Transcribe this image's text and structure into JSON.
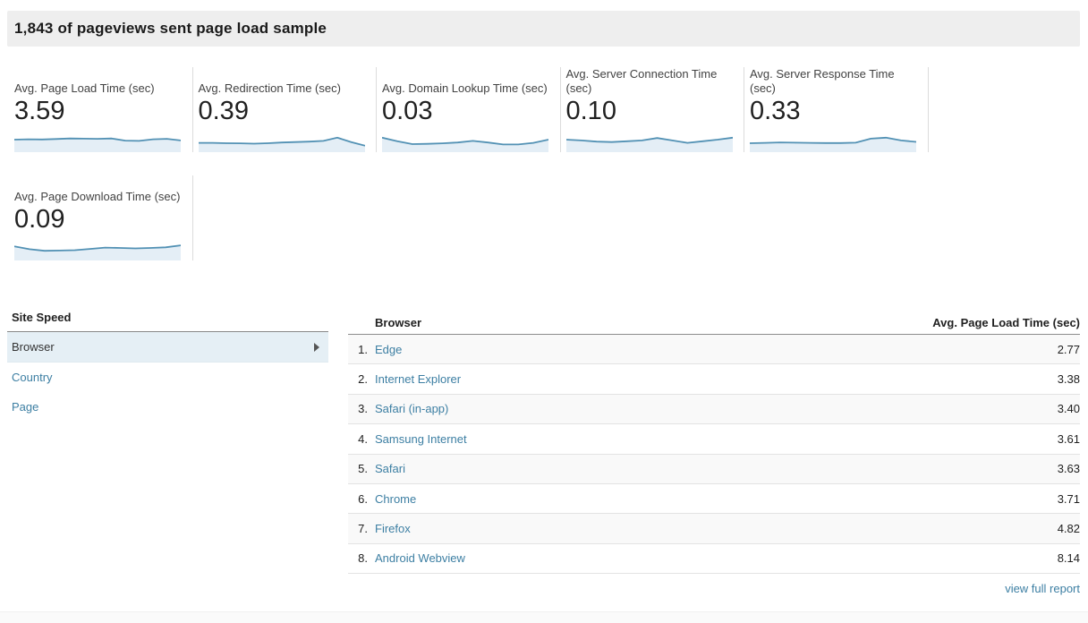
{
  "header": {
    "title": "1,843 of pageviews sent page load sample"
  },
  "colors": {
    "accent_link_blue": "#3d7fa3",
    "spark_line": "#5291b4",
    "spark_fill": "#e4eef6",
    "selected_row_bg": "#e5eff5",
    "header_bar_bg": "#eeeeee"
  },
  "metrics": {
    "cards": [
      {
        "label": "Avg. Page Load Time (sec)",
        "value": "3.59",
        "spark": [
          0.5,
          0.52,
          0.51,
          0.54,
          0.57,
          0.56,
          0.55,
          0.57,
          0.44,
          0.42,
          0.52,
          0.55,
          0.45
        ]
      },
      {
        "label": "Avg. Redirection Time (sec)",
        "value": "0.39",
        "spark": [
          0.3,
          0.3,
          0.28,
          0.27,
          0.25,
          0.28,
          0.32,
          0.35,
          0.38,
          0.42,
          0.62,
          0.35,
          0.12
        ]
      },
      {
        "label": "Avg. Domain Lookup Time (sec)",
        "value": "0.03",
        "spark": [
          0.62,
          0.4,
          0.22,
          0.24,
          0.27,
          0.32,
          0.42,
          0.32,
          0.2,
          0.2,
          0.3,
          0.5
        ]
      },
      {
        "label": "Avg. Server Connection Time (sec)",
        "value": "0.10",
        "spark": [
          0.5,
          0.45,
          0.38,
          0.35,
          0.4,
          0.45,
          0.6,
          0.45,
          0.3,
          0.4,
          0.5,
          0.62
        ]
      },
      {
        "label": "Avg. Server Response Time (sec)",
        "value": "0.33",
        "spark": [
          0.28,
          0.3,
          0.33,
          0.31,
          0.3,
          0.29,
          0.29,
          0.31,
          0.56,
          0.62,
          0.45,
          0.36
        ]
      },
      {
        "label": "Avg. Page Download Time (sec)",
        "value": "0.09",
        "spark": [
          0.6,
          0.42,
          0.32,
          0.34,
          0.36,
          0.44,
          0.52,
          0.5,
          0.47,
          0.5,
          0.54,
          0.66
        ]
      }
    ]
  },
  "nav": {
    "title": "Site Speed",
    "items": [
      {
        "label": "Browser",
        "selected": true
      },
      {
        "label": "Country",
        "selected": false
      },
      {
        "label": "Page",
        "selected": false
      }
    ]
  },
  "table": {
    "columns": {
      "dimension": "Browser",
      "metric": "Avg. Page Load Time (sec)"
    },
    "rows": [
      {
        "rank": "1.",
        "browser": "Edge",
        "value": "2.77"
      },
      {
        "rank": "2.",
        "browser": "Internet Explorer",
        "value": "3.38"
      },
      {
        "rank": "3.",
        "browser": "Safari (in-app)",
        "value": "3.40"
      },
      {
        "rank": "4.",
        "browser": "Samsung Internet",
        "value": "3.61"
      },
      {
        "rank": "5.",
        "browser": "Safari",
        "value": "3.63"
      },
      {
        "rank": "6.",
        "browser": "Chrome",
        "value": "3.71"
      },
      {
        "rank": "7.",
        "browser": "Firefox",
        "value": "4.82"
      },
      {
        "rank": "8.",
        "browser": "Android Webview",
        "value": "8.14"
      }
    ],
    "footer_link": "view full report"
  },
  "chart_data": [
    {
      "type": "line",
      "title": "Avg. Page Load Time (sec)",
      "current_value": 3.59,
      "values_relative": [
        0.5,
        0.52,
        0.51,
        0.54,
        0.57,
        0.56,
        0.55,
        0.57,
        0.44,
        0.42,
        0.52,
        0.55,
        0.45
      ],
      "note": "unlabeled sparkline, relative shape"
    },
    {
      "type": "line",
      "title": "Avg. Redirection Time (sec)",
      "current_value": 0.39,
      "values_relative": [
        0.3,
        0.3,
        0.28,
        0.27,
        0.25,
        0.28,
        0.32,
        0.35,
        0.38,
        0.42,
        0.62,
        0.35,
        0.12
      ],
      "note": "unlabeled sparkline, relative shape"
    },
    {
      "type": "line",
      "title": "Avg. Domain Lookup Time (sec)",
      "current_value": 0.03,
      "values_relative": [
        0.62,
        0.4,
        0.22,
        0.24,
        0.27,
        0.32,
        0.42,
        0.32,
        0.2,
        0.2,
        0.3,
        0.5
      ],
      "note": "unlabeled sparkline, relative shape"
    },
    {
      "type": "line",
      "title": "Avg. Server Connection Time (sec)",
      "current_value": 0.1,
      "values_relative": [
        0.5,
        0.45,
        0.38,
        0.35,
        0.4,
        0.45,
        0.6,
        0.45,
        0.3,
        0.4,
        0.5,
        0.62
      ],
      "note": "unlabeled sparkline, relative shape"
    },
    {
      "type": "line",
      "title": "Avg. Server Response Time (sec)",
      "current_value": 0.33,
      "values_relative": [
        0.28,
        0.3,
        0.33,
        0.31,
        0.3,
        0.29,
        0.29,
        0.31,
        0.56,
        0.62,
        0.45,
        0.36
      ],
      "note": "unlabeled sparkline, relative shape"
    },
    {
      "type": "line",
      "title": "Avg. Page Download Time (sec)",
      "current_value": 0.09,
      "values_relative": [
        0.6,
        0.42,
        0.32,
        0.34,
        0.36,
        0.44,
        0.52,
        0.5,
        0.47,
        0.5,
        0.54,
        0.66
      ],
      "note": "unlabeled sparkline, relative shape"
    },
    {
      "type": "table",
      "columns": [
        "Browser",
        "Avg. Page Load Time (sec)"
      ],
      "rows": [
        [
          "Edge",
          2.77
        ],
        [
          "Internet Explorer",
          3.38
        ],
        [
          "Safari (in-app)",
          3.4
        ],
        [
          "Samsung Internet",
          3.61
        ],
        [
          "Safari",
          3.63
        ],
        [
          "Chrome",
          3.71
        ],
        [
          "Firefox",
          4.82
        ],
        [
          "Android Webview",
          8.14
        ]
      ]
    }
  ]
}
